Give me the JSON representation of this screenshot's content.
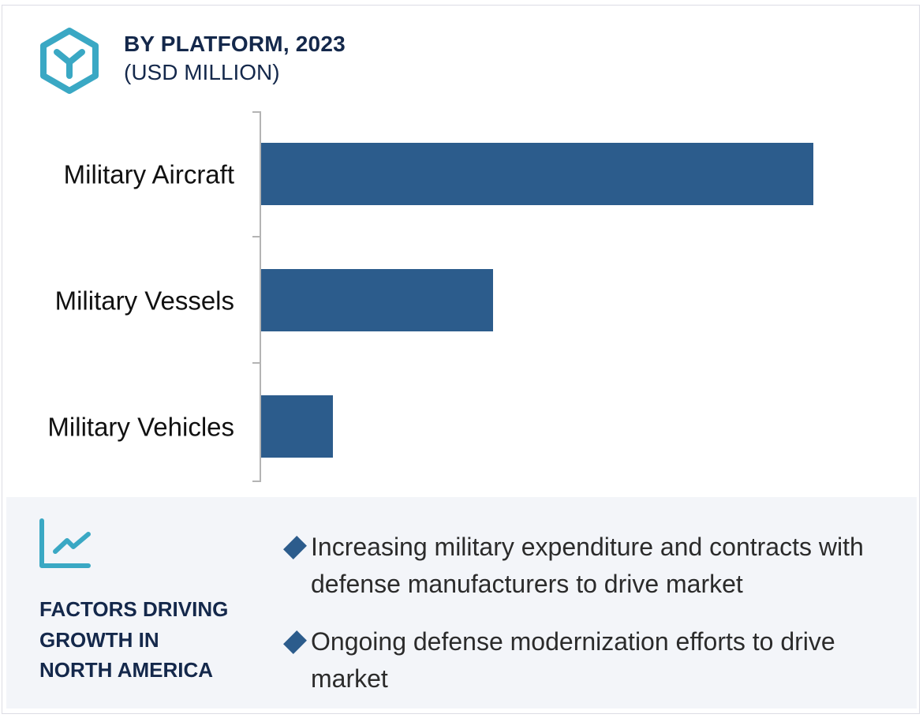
{
  "header": {
    "title": "BY PLATFORM, 2023",
    "subtitle": "(USD MILLION)",
    "icon": "hexagon-y-icon"
  },
  "colors": {
    "bar": "#2c5c8c",
    "accent": "#3aa8c4",
    "title": "#14284b",
    "panel_bg": "#f3f5f9"
  },
  "chart_data": {
    "type": "bar",
    "orientation": "horizontal",
    "title": "BY PLATFORM, 2023",
    "subtitle": "(USD MILLION)",
    "categories": [
      "Military Aircraft",
      "Military Vessels",
      "Military Vehicles"
    ],
    "values": [
      100,
      42,
      13
    ],
    "value_note": "relative bar lengths (no value axis shown)",
    "xlabel": "",
    "ylabel": "",
    "xlim": [
      0,
      100
    ],
    "grid": false,
    "legend": "none"
  },
  "factors": {
    "icon": "trend-chart-icon",
    "heading_lines": [
      "FACTORS DRIVING",
      "GROWTH IN",
      "NORTH AMERICA"
    ],
    "bullets": [
      "Increasing military expenditure and contracts with defense manufacturers to drive market",
      "Ongoing defense modernization efforts to drive market"
    ]
  }
}
